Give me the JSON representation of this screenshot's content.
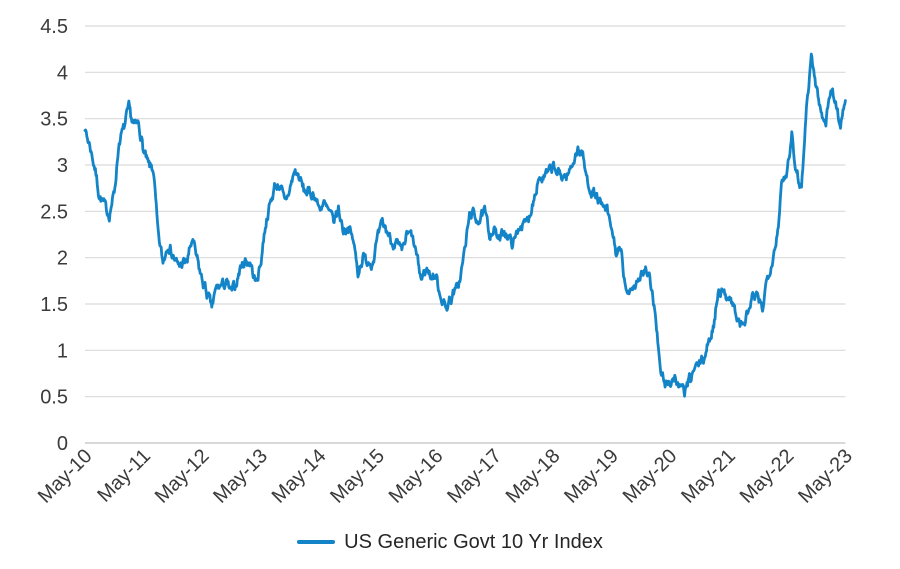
{
  "chart_data": {
    "type": "line",
    "legend_position": "bottom",
    "grid": "horizontal-only",
    "colors": {
      "line": "#1484c8",
      "gridline": "#d9d9d9",
      "axis_line": "#c0c0c0",
      "tick_text": "#3b3b3b",
      "legend_text": "#262626",
      "background": "#ffffff"
    },
    "ylim": [
      0,
      4.5
    ],
    "y_ticks": [
      "0",
      "0.5",
      "1",
      "1.5",
      "2",
      "2.5",
      "3",
      "3.5",
      "4",
      "4.5"
    ],
    "x_ticks": [
      "May-10",
      "May-11",
      "May-12",
      "May-13",
      "May-14",
      "May-15",
      "May-16",
      "May-17",
      "May-18",
      "May-19",
      "May-20",
      "May-21",
      "May-22",
      "May-23"
    ],
    "series": [
      {
        "name": "US Generic Govt 10 Yr Index",
        "frequency": "monthly",
        "x_start": "May-10",
        "x_end": "May-23",
        "values": [
          3.37,
          3.21,
          2.97,
          2.65,
          2.57,
          2.46,
          2.7,
          3.25,
          3.4,
          3.62,
          3.42,
          3.46,
          3.15,
          3.0,
          2.96,
          2.25,
          1.95,
          2.15,
          2.02,
          1.92,
          1.93,
          1.97,
          2.2,
          1.98,
          1.76,
          1.62,
          1.47,
          1.68,
          1.7,
          1.73,
          1.63,
          1.72,
          1.91,
          1.97,
          1.93,
          1.72,
          1.92,
          2.35,
          2.58,
          2.78,
          2.78,
          2.6,
          2.73,
          2.94,
          2.86,
          2.72,
          2.7,
          2.68,
          2.54,
          2.58,
          2.5,
          2.4,
          2.52,
          2.3,
          2.32,
          2.2,
          1.84,
          2.0,
          1.97,
          1.94,
          2.2,
          2.38,
          2.28,
          2.16,
          2.15,
          2.06,
          2.24,
          2.25,
          2.03,
          1.76,
          1.88,
          1.8,
          1.8,
          1.58,
          1.45,
          1.56,
          1.64,
          1.78,
          2.12,
          2.5,
          2.44,
          2.4,
          2.5,
          2.26,
          2.3,
          2.18,
          2.3,
          2.2,
          2.16,
          2.34,
          2.35,
          2.42,
          2.62,
          2.86,
          2.85,
          2.92,
          2.98,
          2.91,
          2.88,
          2.88,
          3.02,
          3.16,
          3.13,
          2.84,
          2.7,
          2.66,
          2.55,
          2.52,
          2.32,
          2.05,
          2.06,
          1.6,
          1.68,
          1.72,
          1.81,
          1.86,
          1.72,
          1.42,
          0.78,
          0.64,
          0.66,
          0.7,
          0.6,
          0.56,
          0.67,
          0.79,
          0.86,
          0.92,
          1.08,
          1.28,
          1.68,
          1.6,
          1.6,
          1.49,
          1.3,
          1.27,
          1.4,
          1.58,
          1.56,
          1.46,
          1.8,
          1.96,
          2.25,
          2.8,
          2.92,
          3.35,
          2.9,
          2.76,
          3.6,
          4.18,
          3.85,
          3.56,
          3.48,
          3.82,
          3.68,
          3.42,
          3.74
        ]
      }
    ]
  }
}
